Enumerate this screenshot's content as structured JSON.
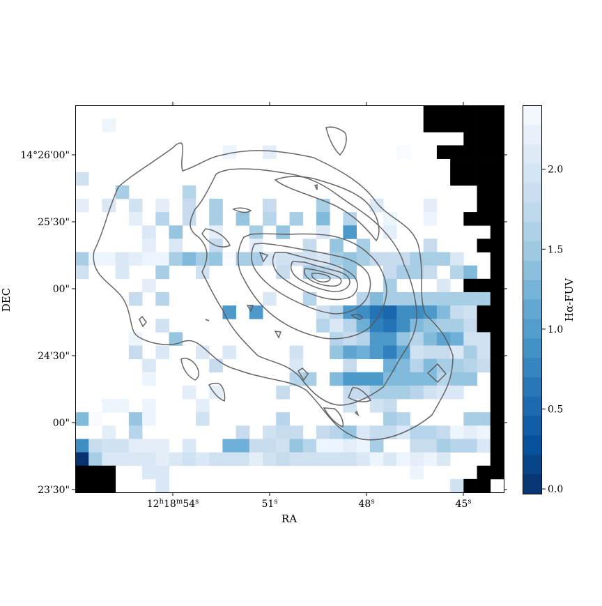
{
  "chart_data": {
    "type": "heatmap",
    "xlabel": "RA",
    "ylabel": "DEC",
    "x_ticks": [
      {
        "label": "12h18m54s",
        "ra_s": 54
      },
      {
        "label": "51s",
        "ra_s": 51
      },
      {
        "label": "48s",
        "ra_s": 48
      },
      {
        "label": "45s",
        "ra_s": 45
      }
    ],
    "y_ticks": [
      {
        "label": "14°26'00\"",
        "dec_arcsec": 150
      },
      {
        "label": "25'30\"",
        "dec_arcsec": 120
      },
      {
        "label": "00\"",
        "dec_arcsec": 90
      },
      {
        "label": "24'30\"",
        "dec_arcsec": 60
      },
      {
        "label": "00\"",
        "dec_arcsec": 30
      },
      {
        "label": "23'30\"",
        "dec_arcsec": 0
      }
    ],
    "colorbar": {
      "label": "Hα-FUV",
      "ticks": [
        0.0,
        0.5,
        1.0,
        1.5,
        2.0
      ],
      "tick_labels": [
        "0.0",
        "0.5",
        "1.0",
        "1.5",
        "2.0"
      ],
      "vmin": -0.03,
      "vmax": 2.4,
      "colormap": "Blues_r",
      "levels": 20
    },
    "grid": false,
    "colors": {
      "masked": "#000000",
      "contour": "#555555",
      "dark_end": "#08306b",
      "light_end": "#f7fbff"
    },
    "pixel_grid": {
      "columns": 32,
      "rows": 29,
      "legend": "row strings top to bottom; '.' blank, '#' masked (black), a-u = value level 0..20 from (2.4 - level*0.12)",
      "rows_data": [
        "..........................######",
        "..b.......................######",
        ".............................###",
        "...........b..c.........a..#####",
        "............................####",
        "e...........................####",
        "...h....g.....................##",
        "c.d.e.c.f.h...f...h...d...c...##",
        "....c.g.f.h.i.g.h.j.g..b..b..###",
        ".....d.i..c..h.i..d.m..c.......#",
        ".....c.d..f..c...f.i.h....f...##",
        "hbbdcbbhjhiahhdeeedhihfffhhhd..#",
        "e..d..h..e.....f.hgfi..fhhf.gj.#",
        ".....c.................h...d.###",
        "....f.g.......d..g...gjhhhhhhhh#",
        "...........m.m....egmnpqnnmjfe##",
        "......e...........gdgkopnjihhf##",
        "....b..i...........gfgmmigjlkee#",
        "....f.d..d.d....e..ilkmoleffdhe#",
        ".....d....f.....d...f..kjgjhhgf#",
        ".....b..........gh.jmmmjjjjgii.#",
        "........c.c....f....ffhhhgedd..#",
        "..bb.b...c..........e.ef.......#",
        "ja..ib...e.....g.......hg....hh#",
        "..c.g.......f.eff.fgidffdggfbcb#",
        "nfeeccc.d..kkffeigbbcbh..ffhggd#",
        "uhddddcdedeeecefeeeeedbdbcbd...#",
        "###..dd..................b....##",
        "###...d.....................e##"
      ]
    }
  }
}
